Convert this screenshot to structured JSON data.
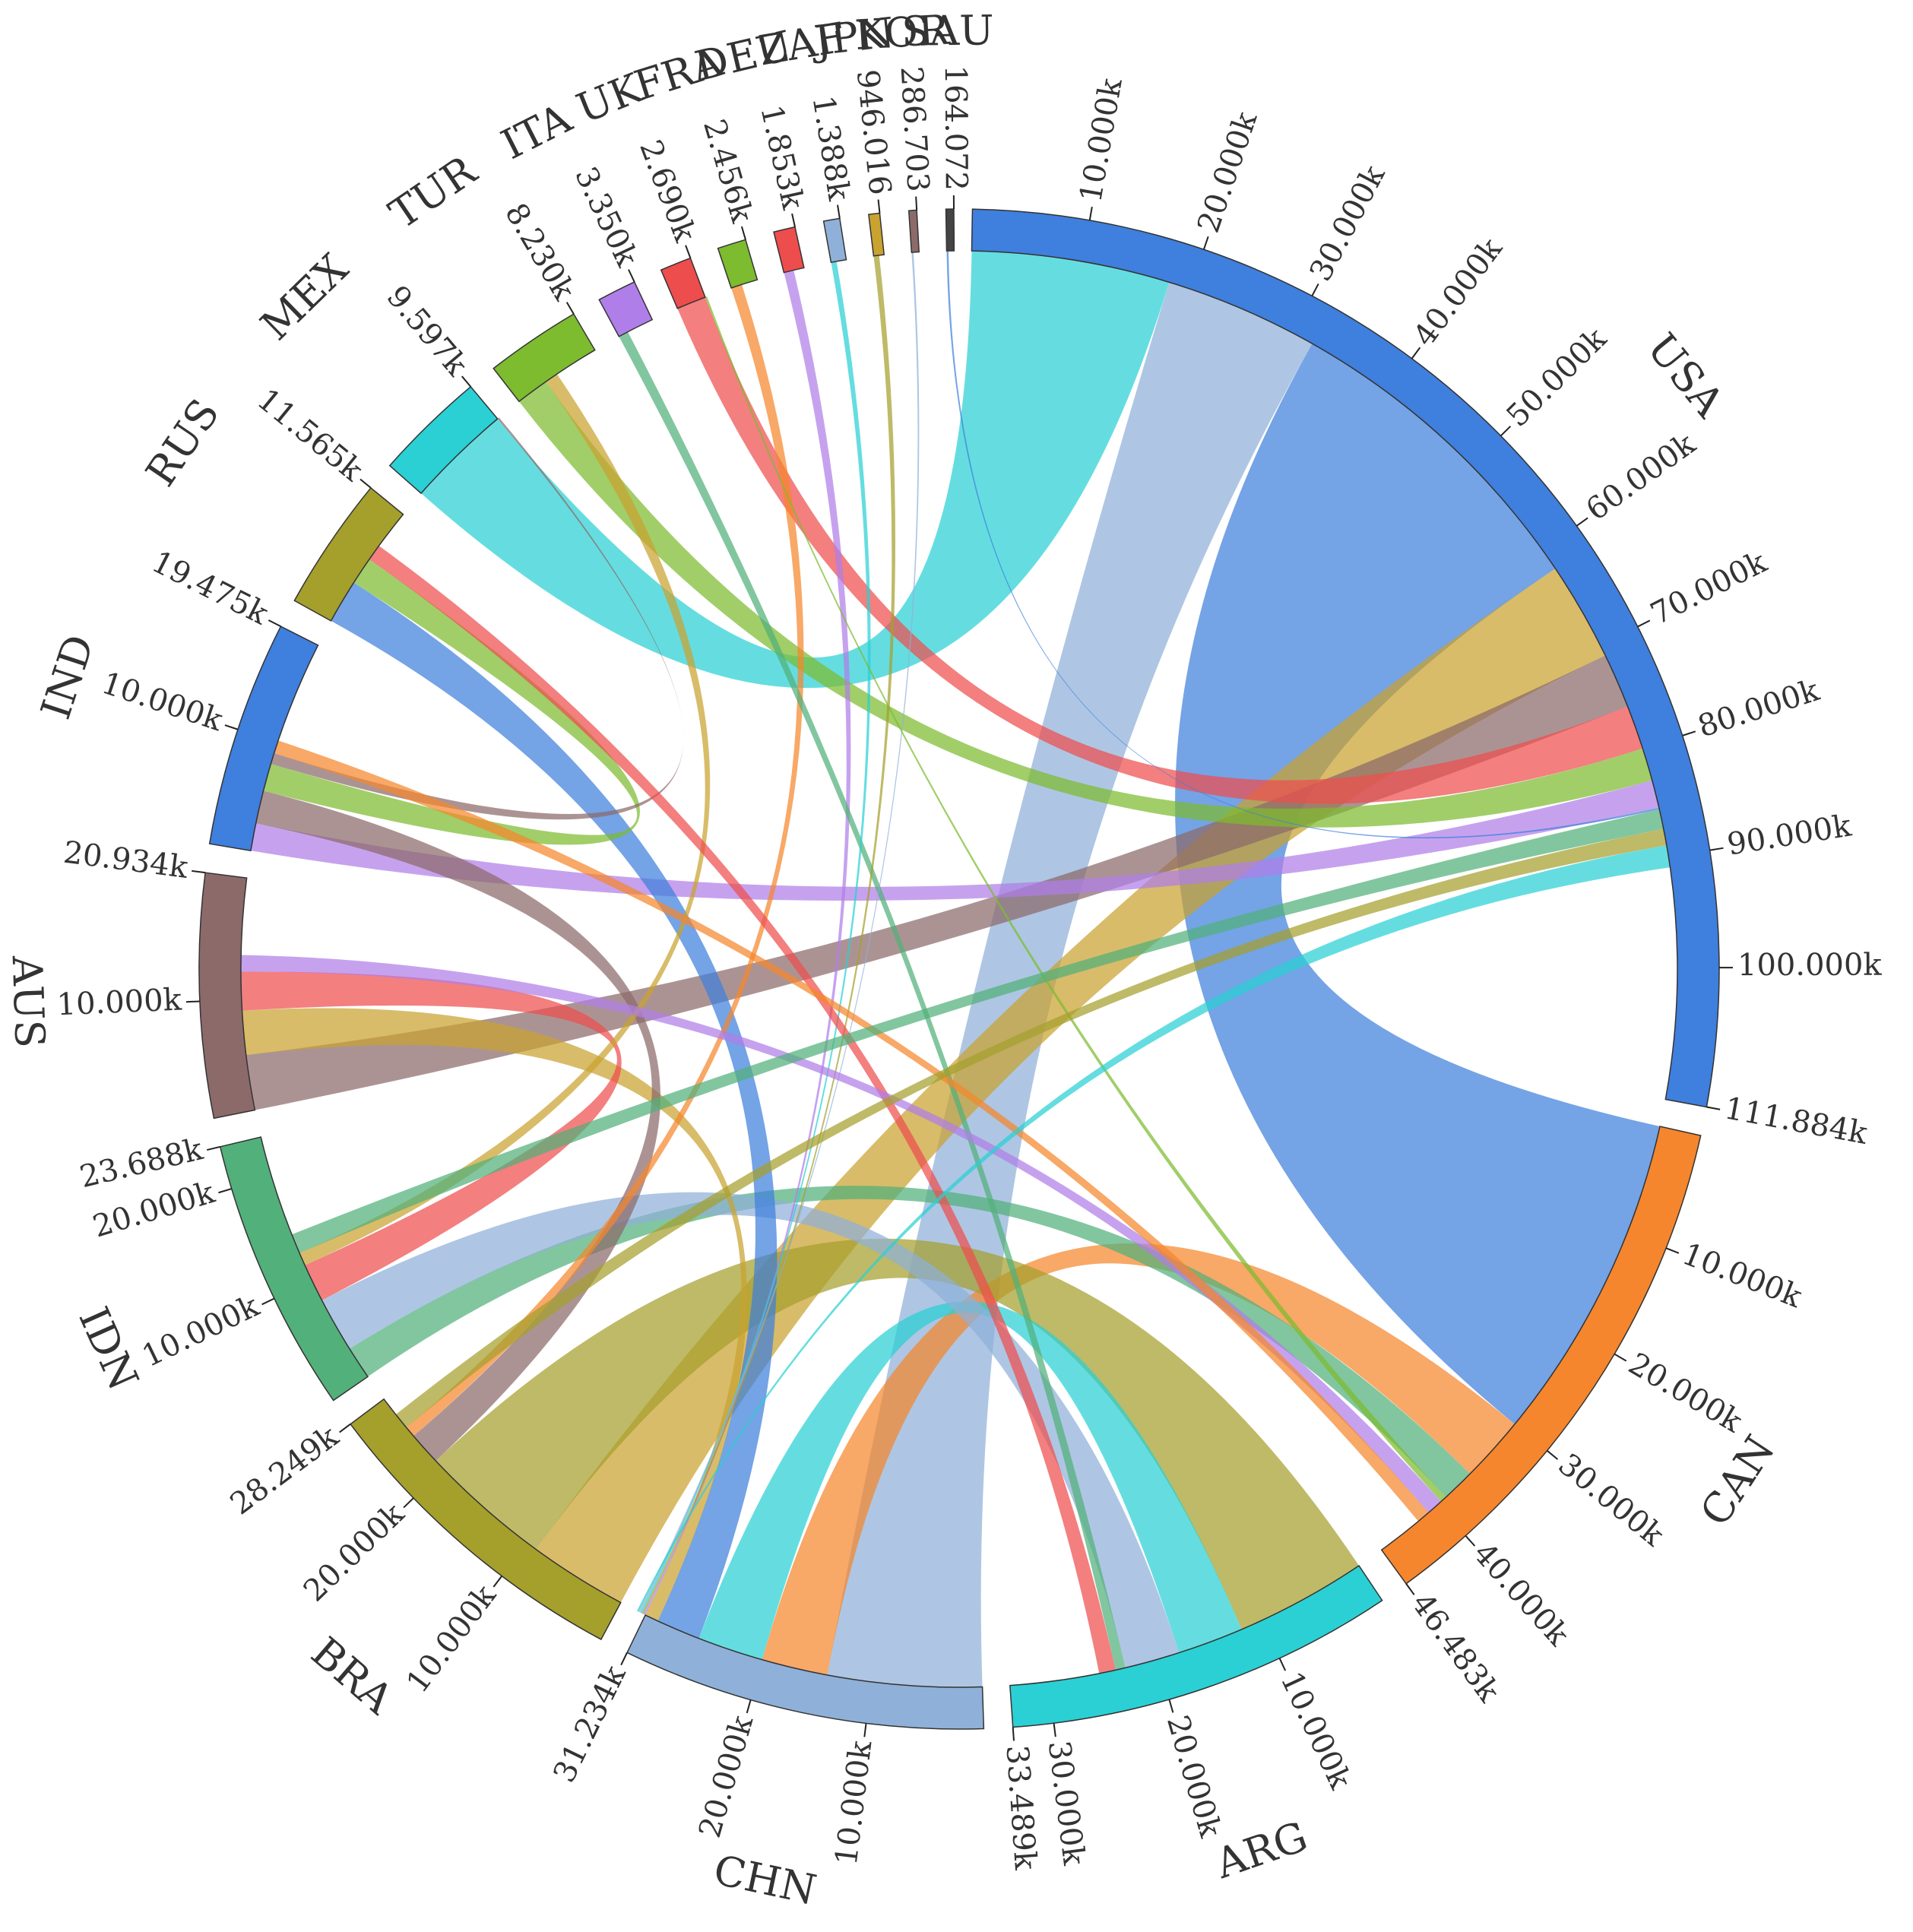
{
  "chart_data": {
    "type": "chord",
    "title": "",
    "nodes": [
      {
        "name": "USA",
        "total": 111884,
        "total_label": "111.884k",
        "color": "#3f7fdd",
        "ticks": [
          "10.000k",
          "20.000k",
          "30.000k",
          "40.000k",
          "50.000k",
          "60.000k",
          "70.000k",
          "80.000k",
          "90.000k",
          "100.000k"
        ]
      },
      {
        "name": "CAN",
        "total": 46483,
        "total_label": "46.483k",
        "color": "#f5862d",
        "ticks": [
          "10.000k",
          "20.000k",
          "30.000k",
          "40.000k"
        ]
      },
      {
        "name": "ARG",
        "total": 33489,
        "total_label": "33.489k",
        "color": "#2ad0d4",
        "ticks": [
          "10.000k",
          "20.000k",
          "30.000k"
        ]
      },
      {
        "name": "CHN",
        "total": 31234,
        "total_label": "31.234k",
        "color": "#8fb0d8",
        "ticks": [
          "10.000k",
          "20.000k"
        ]
      },
      {
        "name": "BRA",
        "total": 28249,
        "total_label": "28.249k",
        "color": "#a59f2c",
        "ticks": [
          "10.000k",
          "20.000k"
        ]
      },
      {
        "name": "IDN",
        "total": 23688,
        "total_label": "23.688k",
        "color": "#52b07a",
        "ticks": [
          "10.000k",
          "20.000k"
        ]
      },
      {
        "name": "AUS",
        "total": 20934,
        "total_label": "20.934k",
        "color": "#8c6a6a",
        "ticks": [
          "10.000k"
        ]
      },
      {
        "name": "IND",
        "total": 19475,
        "total_label": "19.475k",
        "color": "#3f7fdd",
        "ticks": [
          "10.000k"
        ]
      },
      {
        "name": "RUS",
        "total": 11565,
        "total_label": "11.565k",
        "color": "#a59f2c",
        "ticks": []
      },
      {
        "name": "MEX",
        "total": 9597,
        "total_label": "9.597k",
        "color": "#2ad0d4",
        "ticks": []
      },
      {
        "name": "TUR",
        "total": 8230,
        "total_label": "8.230k",
        "color": "#7dbb2f",
        "ticks": []
      },
      {
        "name": "ITA",
        "total": 3350,
        "total_label": "3.350k",
        "color": "#b07ee8",
        "ticks": []
      },
      {
        "name": "UK",
        "total": 2690,
        "total_label": "2.690k",
        "color": "#ee4d4d",
        "ticks": []
      },
      {
        "name": "FRA",
        "total": 2456,
        "total_label": "2.456k",
        "color": "#7dbb2f",
        "ticks": []
      },
      {
        "name": "DEU",
        "total": 1853,
        "total_label": "1.853k",
        "color": "#ee4d4d",
        "ticks": []
      },
      {
        "name": "ZAF",
        "total": 1388,
        "total_label": "1.388k",
        "color": "#8fb0d8",
        "ticks": []
      },
      {
        "name": "JPN",
        "total": 946.016,
        "total_label": "946.016",
        "color": "#c9a22f",
        "ticks": []
      },
      {
        "name": "KOR",
        "total": 286.703,
        "total_label": "286.703",
        "color": "#8c6a6a",
        "ticks": []
      },
      {
        "name": "SAU",
        "total": 164.072,
        "total_label": "164.072",
        "color": "#444444",
        "ticks": []
      }
    ],
    "flows": [
      {
        "source": "USA",
        "target": "MEX",
        "value": 18000
      },
      {
        "source": "USA",
        "target": "CHN",
        "value": 14000
      },
      {
        "source": "USA",
        "target": "CAN",
        "value": 30000
      },
      {
        "source": "USA",
        "target": "BRA",
        "value": 9000
      },
      {
        "source": "USA",
        "target": "AUS",
        "value": 5000
      },
      {
        "source": "USA",
        "target": "UK",
        "value": 4000
      },
      {
        "source": "USA",
        "target": "TUR",
        "value": 3000
      },
      {
        "source": "USA",
        "target": "IND",
        "value": 2500
      },
      {
        "source": "CAN",
        "target": "CHN",
        "value": 6000
      },
      {
        "source": "CAN",
        "target": "IDN",
        "value": 3000
      },
      {
        "source": "ARG",
        "target": "BRA",
        "value": 12000
      },
      {
        "source": "ARG",
        "target": "CHN",
        "value": 6000
      },
      {
        "source": "ARG",
        "target": "IDN",
        "value": 5000
      },
      {
        "source": "CHN",
        "target": "RUS",
        "value": 4000
      },
      {
        "source": "CHN",
        "target": "AUS",
        "value": 4000
      },
      {
        "source": "BRA",
        "target": "IND",
        "value": 3000
      },
      {
        "source": "IDN",
        "target": "AUS",
        "value": 3500
      },
      {
        "source": "IND",
        "target": "RUS",
        "value": 2500
      },
      {
        "source": "DEU",
        "target": "CHN",
        "value": 900
      },
      {
        "source": "FRA",
        "target": "BRA",
        "value": 1000
      },
      {
        "source": "ITA",
        "target": "ARG",
        "value": 900
      },
      {
        "source": "JPN",
        "target": "CHN",
        "value": 500
      },
      {
        "source": "ZAF",
        "target": "CHN",
        "value": 500
      },
      {
        "source": "KOR",
        "target": "CHN",
        "value": 150
      },
      {
        "source": "SAU",
        "target": "USA",
        "value": 80
      },
      {
        "source": "TUR",
        "target": "IDN",
        "value": 1200
      },
      {
        "source": "MEX",
        "target": "IND",
        "value": 1000
      },
      {
        "source": "RUS",
        "target": "ARG",
        "value": 1500
      },
      {
        "source": "UK",
        "target": "CAN",
        "value": 600
      },
      {
        "source": "AUS",
        "target": "CAN",
        "value": 1500
      },
      {
        "source": "IND",
        "target": "CAN",
        "value": 1200
      },
      {
        "source": "IDN",
        "target": "USA",
        "value": 1800
      },
      {
        "source": "BRA",
        "target": "USA",
        "value": 1500
      },
      {
        "source": "CHN",
        "target": "USA",
        "value": 2000
      }
    ]
  }
}
